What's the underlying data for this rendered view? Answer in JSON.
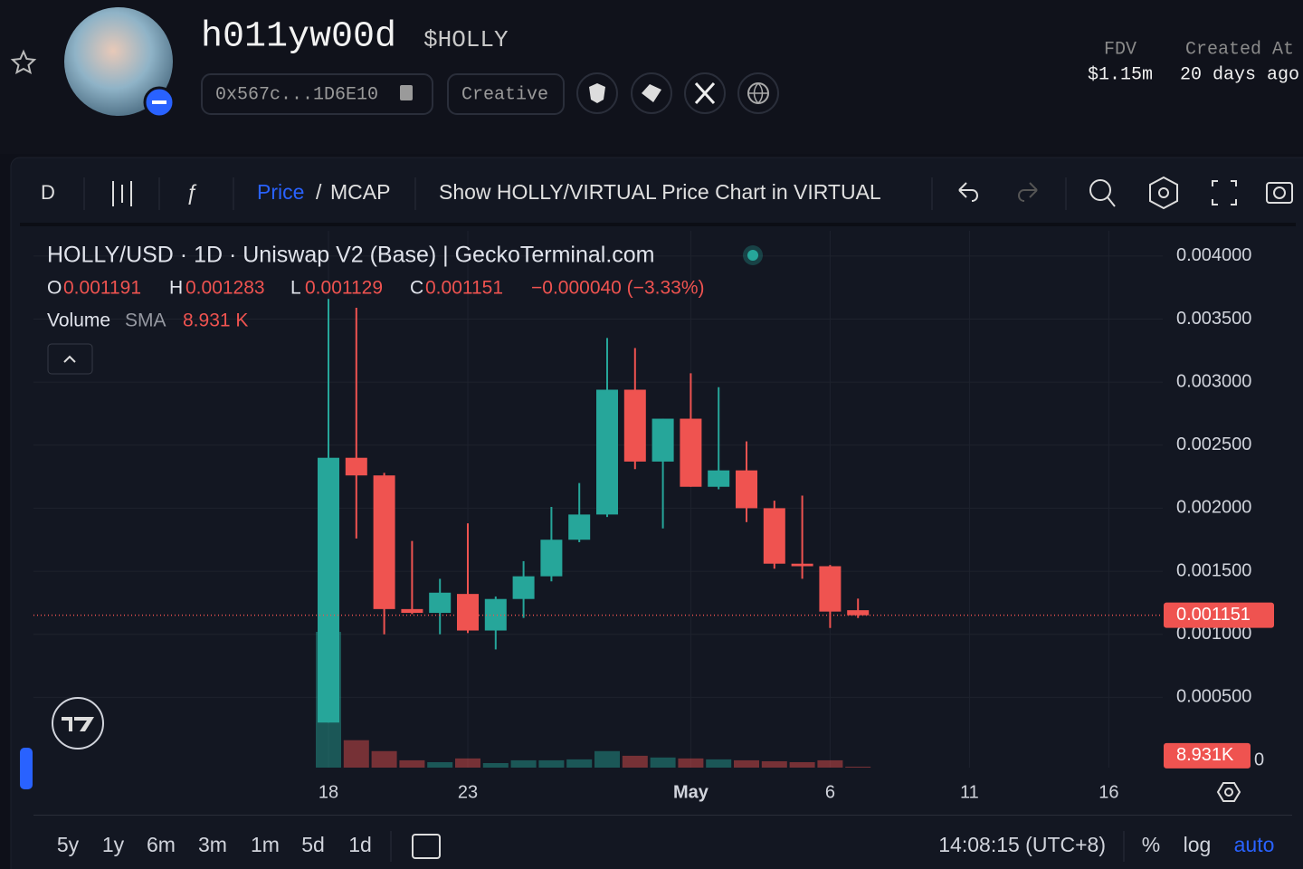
{
  "header": {
    "name": "h011yw00d",
    "ticker": "$HOLLY",
    "address": "0x567c...1D6E10",
    "tag": "Creative",
    "fdv_label": "FDV",
    "fdv": "$1.15m",
    "created_label": "Created At",
    "created": "20 days ago"
  },
  "toolbar": {
    "interval": "D",
    "price_toggle": {
      "active": "Price",
      "separator": "/",
      "other": "MCAP"
    },
    "show_in": "Show HOLLY/VIRTUAL Price Chart in VIRTUAL"
  },
  "chart_data": {
    "type": "candlestick",
    "title": "HOLLY/USD · 1D · Uniswap V2 (Base) | GeckoTerminal.com",
    "legend": {
      "o": "O",
      "h": "H",
      "l": "L",
      "c": "C",
      "volume": "Volume",
      "sma": "SMA"
    },
    "change_label": "−0.000040 (−3.33%)",
    "volume_sma_legend": "8.931 K",
    "volume_sma": {
      "value": 8931,
      "label": "8.931K"
    },
    "up_color": "#26a69a",
    "down_color": "#ef5350",
    "categories": [
      null,
      null,
      null,
      null,
      null,
      null,
      null,
      null,
      null,
      null,
      "18",
      null,
      null,
      null,
      null,
      "23",
      null,
      null,
      null,
      null,
      null,
      null,
      null,
      "May",
      null,
      null,
      null,
      null,
      "6",
      null,
      null,
      null,
      null,
      "11",
      null,
      null,
      null,
      null,
      "16",
      null
    ],
    "open": [
      null,
      null,
      null,
      null,
      null,
      null,
      null,
      null,
      null,
      null,
      0.0003,
      0.0024,
      0.00226,
      0.0012,
      0.00117,
      0.00132,
      0.00103,
      0.00128,
      0.00146,
      0.00175,
      0.00195,
      0.00294,
      0.00237,
      0.00271,
      0.00217,
      0.0023,
      0.002,
      0.00156,
      0.00154,
      0.001191,
      null,
      null,
      null,
      null,
      null,
      null,
      null,
      null,
      null,
      null
    ],
    "high": [
      null,
      null,
      null,
      null,
      null,
      null,
      null,
      null,
      null,
      null,
      0.00366,
      0.00359,
      0.00228,
      0.00174,
      0.00144,
      0.00188,
      0.0013,
      0.00158,
      0.00201,
      0.0022,
      0.00335,
      0.00327,
      0.00271,
      0.00307,
      0.00296,
      0.00253,
      0.00206,
      0.0021,
      0.00155,
      0.001283,
      null,
      null,
      null,
      null,
      null,
      null,
      null,
      null,
      null,
      null
    ],
    "low": [
      null,
      null,
      null,
      null,
      null,
      null,
      null,
      null,
      null,
      null,
      0.0003,
      0.00176,
      0.001,
      0.00116,
      0.001,
      0.00101,
      0.00088,
      0.00113,
      0.00142,
      0.00173,
      0.00193,
      0.00231,
      0.00184,
      0.00217,
      0.00215,
      0.00189,
      0.00152,
      0.00144,
      0.00105,
      0.001129,
      null,
      null,
      null,
      null,
      null,
      null,
      null,
      null,
      null,
      null
    ],
    "close": [
      null,
      null,
      null,
      null,
      null,
      null,
      null,
      null,
      null,
      null,
      0.0024,
      0.00226,
      0.0012,
      0.00117,
      0.00133,
      0.00103,
      0.00128,
      0.00146,
      0.00175,
      0.00195,
      0.00294,
      0.00237,
      0.00271,
      0.00217,
      0.0023,
      0.002,
      0.00156,
      0.00154,
      0.00118,
      0.001151,
      null,
      null,
      null,
      null,
      null,
      null,
      null,
      null,
      null,
      null
    ],
    "volume": [
      null,
      null,
      null,
      null,
      null,
      null,
      null,
      null,
      null,
      null,
      102000,
      20600,
      12400,
      5500,
      4100,
      6900,
      3400,
      5500,
      5500,
      6200,
      12400,
      8900,
      7600,
      6900,
      6200,
      5500,
      4800,
      4100,
      5500,
      700,
      null,
      null,
      null,
      null,
      null,
      null,
      null,
      null,
      null,
      null
    ],
    "ylim": [
      0,
      0.0042
    ],
    "yticks": [
      {
        "value": 0,
        "label": "0"
      },
      {
        "value": 0.0005,
        "label": "0.000500"
      },
      {
        "value": 0.001,
        "label": "0.001000"
      },
      {
        "value": 0.0015,
        "label": "0.001500"
      },
      {
        "value": 0.002,
        "label": "0.002000"
      },
      {
        "value": 0.0025,
        "label": "0.002500"
      },
      {
        "value": 0.003,
        "label": "0.003000"
      },
      {
        "value": 0.0035,
        "label": "0.003500"
      },
      {
        "value": 0.004,
        "label": "0.004000"
      }
    ],
    "grid": true
  },
  "footer": {
    "ranges": [
      "5y",
      "1y",
      "6m",
      "3m",
      "1m",
      "5d",
      "1d"
    ],
    "time": "14:08:15 (UTC+8)",
    "percent": "%",
    "log": "log",
    "auto": "auto"
  }
}
